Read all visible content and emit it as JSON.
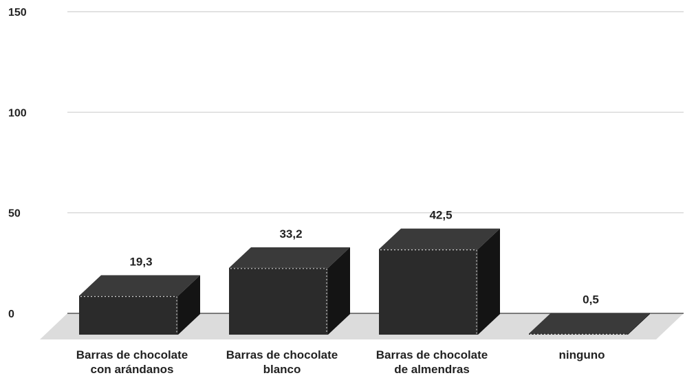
{
  "chart_data": {
    "type": "bar",
    "categories": [
      [
        "Barras de chocolate",
        "con arándanos"
      ],
      [
        "Barras de chocolate",
        "blanco"
      ],
      [
        "Barras de chocolate",
        "de almendras"
      ],
      [
        "ninguno"
      ]
    ],
    "values": [
      19.3,
      33.2,
      42.5,
      0.5
    ],
    "value_labels": [
      "19,3",
      "33,2",
      "42,5",
      "0,5"
    ],
    "y_ticks": [
      "0",
      "50",
      "100",
      "150"
    ],
    "ylim": [
      0,
      150
    ],
    "grid": true,
    "legend": false,
    "colors": {
      "bar_front": "#2b2b2b",
      "bar_top": "#3a3a3a",
      "bar_side": "#141414",
      "floor": "#dcdcdc",
      "grid": "#cfcfcf",
      "baseline": "#555555",
      "text": "#222222"
    }
  }
}
